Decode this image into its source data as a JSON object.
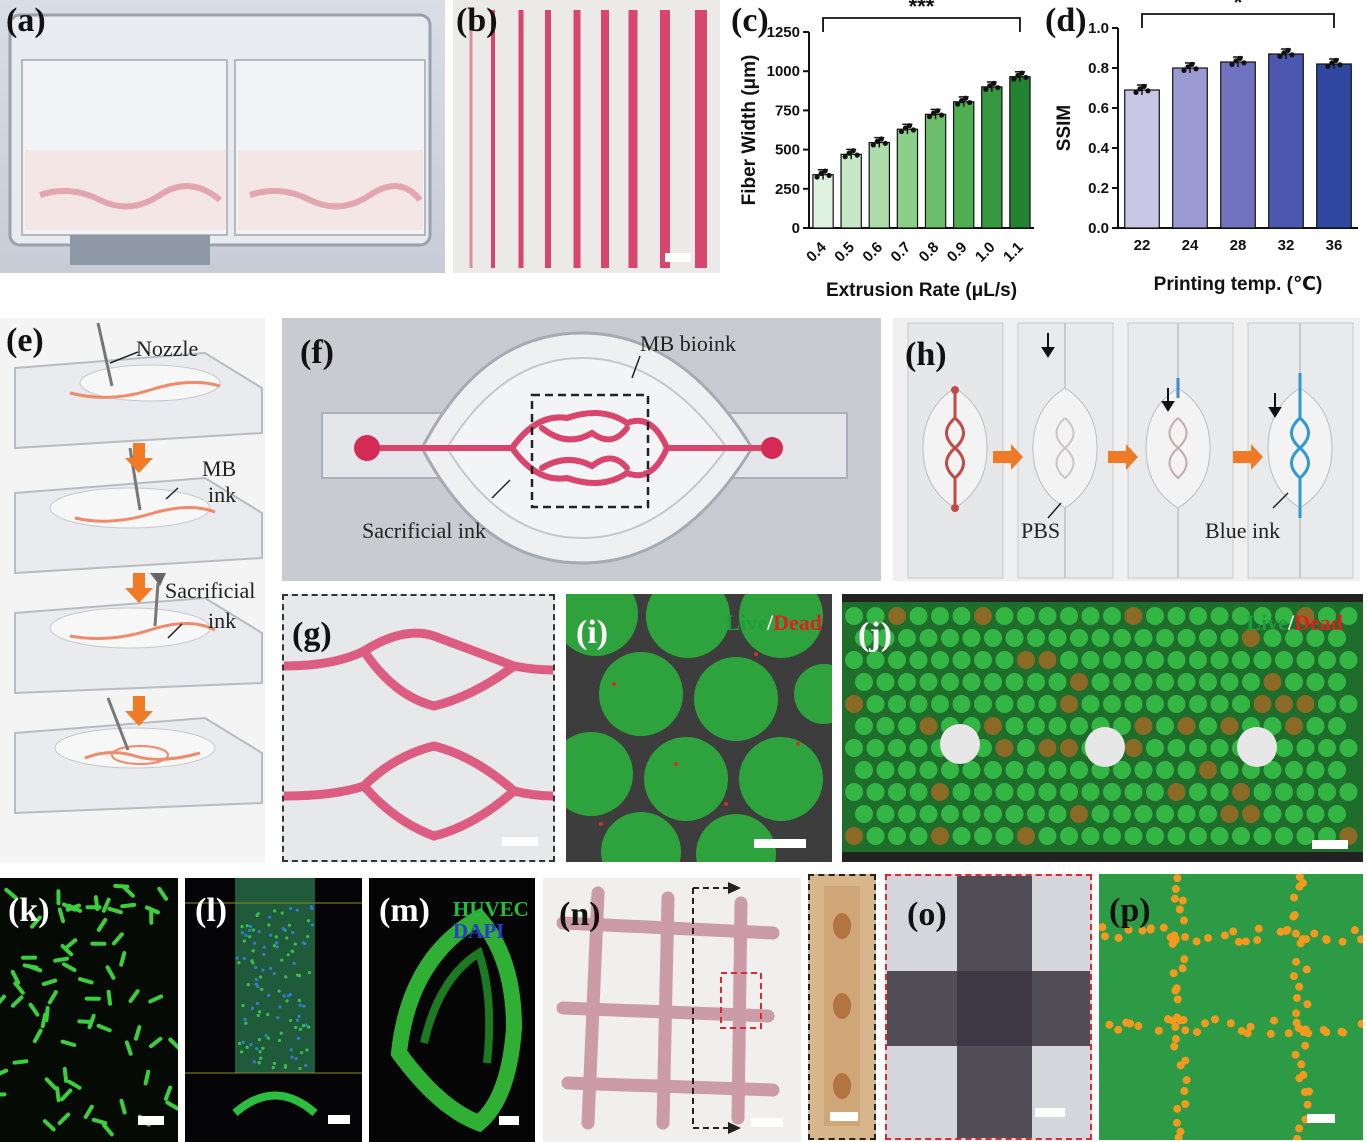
{
  "labels": {
    "a": "(a)",
    "b": "(b)",
    "c": "(c)",
    "d": "(d)",
    "e": "(e)",
    "f": "(f)",
    "g": "(g)",
    "h": "(h)",
    "i": "(i)",
    "j": "(j)",
    "k": "(k)",
    "l": "(l)",
    "m": "(m)",
    "n": "(n)",
    "o": "(o)",
    "p": "(p)"
  },
  "annotations": {
    "e_nozzle": "Nozzle",
    "e_mb": "MB",
    "e_ink": "ink",
    "e_sacrificial": "Sacrificial",
    "e_ink2": "ink",
    "f_mb_bioink": "MB bioink",
    "f_sacrificial": "Sacrificial ink",
    "h_pbs": "PBS",
    "h_blue": "Blue ink",
    "i_live": "Live",
    "i_slash": "/",
    "i_dead": "Dead",
    "j_live": "Live",
    "j_slash": "/",
    "j_dead": "Dead",
    "m_huvec": "HUVEC",
    "m_dapi": "DAPI"
  },
  "colors": {
    "live": "#1e9e3a",
    "dead": "#e02020",
    "huvec": "#1fbf3a",
    "dapi": "#2a3bd0",
    "arrow": "#f07a25"
  },
  "chart_data": [
    {
      "type": "bar",
      "panel": "c",
      "categories": [
        "0.4",
        "0.5",
        "0.6",
        "0.7",
        "0.8",
        "0.9",
        "1.0",
        "1.1"
      ],
      "values": [
        340,
        470,
        545,
        630,
        725,
        805,
        900,
        965
      ],
      "xlabel": "Extrusion Rate (μL/s)",
      "ylabel": "Fiber Width (μm)",
      "ylim": [
        0,
        1250
      ],
      "yticks": [
        0,
        250,
        500,
        750,
        1000,
        1250
      ],
      "significance": "***",
      "colors": [
        "#dff2df",
        "#c6e8c4",
        "#acdca9",
        "#8ccf89",
        "#6cbf6a",
        "#4eae51",
        "#36993f",
        "#238332"
      ]
    },
    {
      "type": "bar",
      "panel": "d",
      "categories": [
        "22",
        "24",
        "28",
        "32",
        "36"
      ],
      "values": [
        0.69,
        0.8,
        0.83,
        0.87,
        0.82
      ],
      "xlabel": "Printing temp. (℃)",
      "ylabel": "SSIM",
      "ylim": [
        0,
        1.0
      ],
      "yticks": [
        "0.0",
        "0.2",
        "0.4",
        "0.6",
        "0.8",
        "1.0"
      ],
      "significance": "*",
      "colors": [
        "#c8c7e6",
        "#9c9ad3",
        "#7173c0",
        "#4c58b0",
        "#2f479f"
      ]
    }
  ]
}
